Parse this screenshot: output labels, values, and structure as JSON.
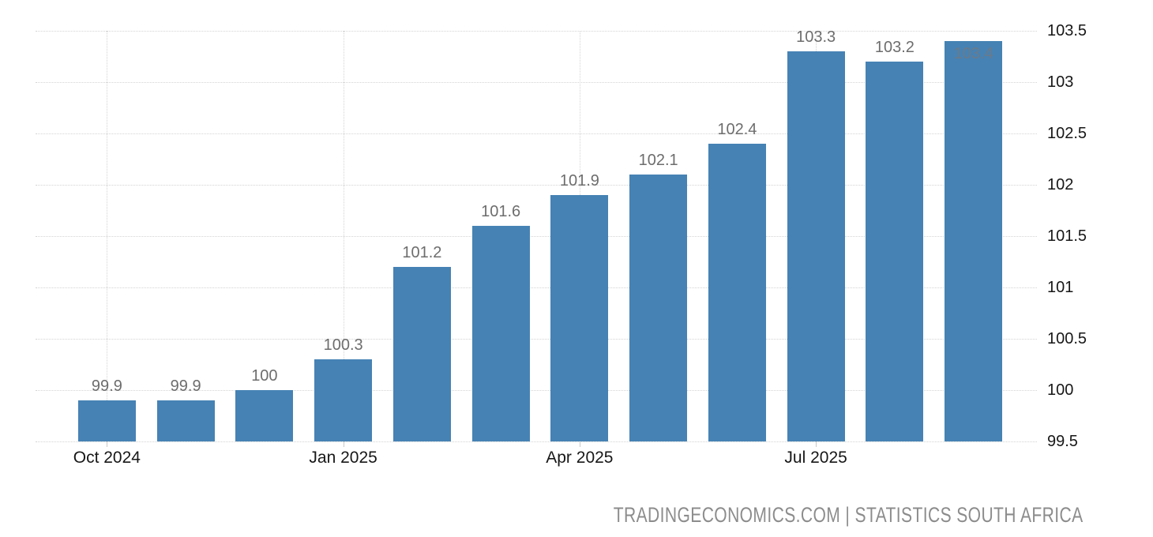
{
  "footer": {
    "text": "TRADINGECONOMICS.COM | STATISTICS SOUTH AFRICA"
  },
  "chart_data": {
    "type": "bar",
    "title": "",
    "xlabel": "",
    "ylabel": "",
    "categories": [
      "Oct 2024",
      "Nov 2024",
      "Dec 2024",
      "Jan 2025",
      "Feb 2025",
      "Mar 2025",
      "Apr 2025",
      "May 2025",
      "Jun 2025",
      "Jul 2025",
      "Aug 2025",
      "Sep 2025"
    ],
    "values": [
      99.9,
      99.9,
      100,
      100.3,
      101.2,
      101.6,
      101.9,
      102.1,
      102.4,
      103.3,
      103.2,
      103.4
    ],
    "value_labels": [
      "99.9",
      "99.9",
      "100",
      "100.3",
      "101.2",
      "101.6",
      "101.9",
      "102.1",
      "102.4",
      "103.3",
      "103.2",
      "103.4"
    ],
    "x_tick_labels": [
      "Oct 2024",
      "Jan 2025",
      "Apr 2025",
      "Jul 2025"
    ],
    "x_tick_indices": [
      0,
      3,
      6,
      9
    ],
    "ylim": [
      99.5,
      103.5
    ],
    "y_tick_step": 0.5,
    "y_tick_labels": [
      "99.5",
      "100",
      "100.5",
      "101",
      "101.5",
      "102",
      "102.5",
      "103",
      "103.5"
    ],
    "grid": true,
    "legend": "none",
    "colors": {
      "bar": "#4682b4",
      "grid": "#d4d4d4",
      "value_label": "#6d6d6d",
      "value_label_inside": "#6c7a87",
      "axis_label": "#171717",
      "footer": "#8c8c8c"
    }
  }
}
